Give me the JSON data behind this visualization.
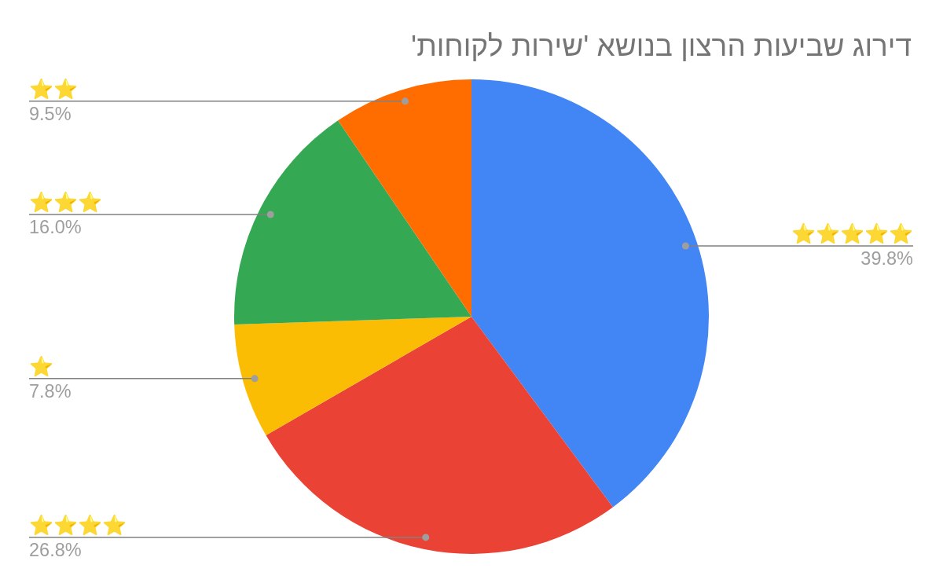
{
  "chart_data": {
    "type": "pie",
    "title": "דירוג שביעות הרצון בנושא 'שירות לקוחות'",
    "categories": [
      "⭐⭐⭐⭐⭐",
      "⭐⭐⭐⭐",
      "⭐",
      "⭐⭐⭐",
      "⭐⭐"
    ],
    "values": [
      39.8,
      26.8,
      7.8,
      16.0,
      9.5
    ],
    "value_labels": [
      "39.8%",
      "26.8%",
      "7.8%",
      "16.0%",
      "9.5%"
    ],
    "colors": [
      "#4285f4",
      "#ea4335",
      "#fbbc04",
      "#34a853",
      "#ff6d01"
    ]
  }
}
